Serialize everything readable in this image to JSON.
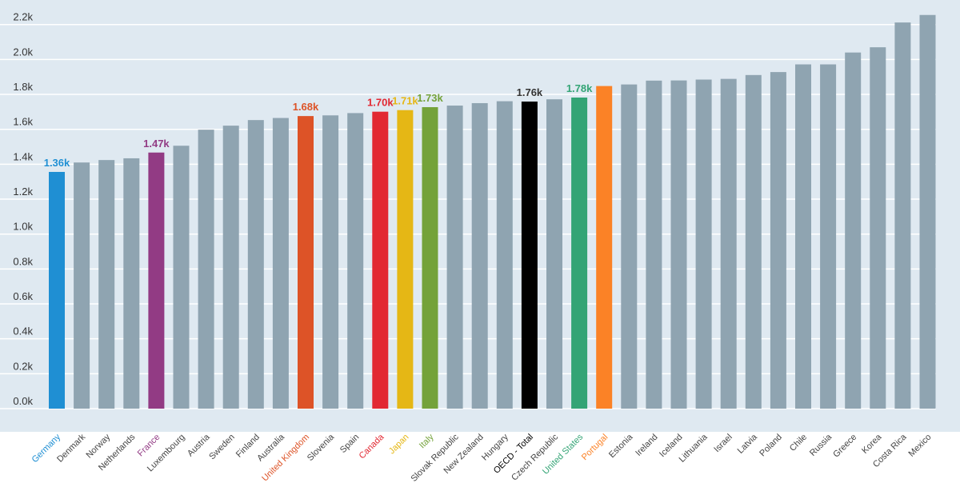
{
  "chart_data": {
    "type": "bar",
    "title": "",
    "xlabel": "",
    "ylabel": "",
    "ylim": [
      0,
      2260
    ],
    "grid": true,
    "yticks": [
      {
        "value": 0,
        "label": "0.0k"
      },
      {
        "value": 200,
        "label": "0.2k"
      },
      {
        "value": 400,
        "label": "0.4k"
      },
      {
        "value": 600,
        "label": "0.6k"
      },
      {
        "value": 800,
        "label": "0.8k"
      },
      {
        "value": 1000,
        "label": "1.0k"
      },
      {
        "value": 1200,
        "label": "1.2k"
      },
      {
        "value": 1400,
        "label": "1.4k"
      },
      {
        "value": 1600,
        "label": "1.6k"
      },
      {
        "value": 1800,
        "label": "1.8k"
      },
      {
        "value": 2000,
        "label": "2.0k"
      },
      {
        "value": 2200,
        "label": "2.2k"
      }
    ],
    "default_color": "#8fa4b1",
    "categories": [
      "Germany",
      "Denmark",
      "Norway",
      "Netherlands",
      "France",
      "Luxembourg",
      "Austria",
      "Sweden",
      "Finland",
      "Australia",
      "United Kingdom",
      "Slovenia",
      "Spain",
      "Canada",
      "Japan",
      "Italy",
      "Slovak Republic",
      "New Zealand",
      "Hungary",
      "OECD - Total",
      "Czech Republic",
      "United States",
      "Portugal",
      "Estonia",
      "Ireland",
      "Iceland",
      "Lithuania",
      "Israel",
      "Latvia",
      "Poland",
      "Chile",
      "Russia",
      "Greece",
      "Korea",
      "Costa Rica",
      "Mexico"
    ],
    "values": [
      1356,
      1410,
      1424,
      1434,
      1467,
      1506,
      1598,
      1621,
      1653,
      1665,
      1676,
      1680,
      1693,
      1701,
      1710,
      1727,
      1736,
      1750,
      1761,
      1759,
      1772,
      1782,
      1848,
      1857,
      1879,
      1880,
      1885,
      1889,
      1911,
      1928,
      1972,
      1972,
      2040,
      2070,
      2212,
      2255
    ],
    "highlights": [
      {
        "category": "Germany",
        "color": "#1f8fd3",
        "data_label": "1.36k"
      },
      {
        "category": "France",
        "color": "#923b84",
        "data_label": "1.47k"
      },
      {
        "category": "United Kingdom",
        "color": "#dd5327",
        "data_label": "1.68k"
      },
      {
        "category": "Canada",
        "color": "#e22832",
        "data_label": "1.70k"
      },
      {
        "category": "Japan",
        "color": "#e5b715",
        "data_label": "1.71k"
      },
      {
        "category": "Italy",
        "color": "#74a23a",
        "data_label": "1.73k"
      },
      {
        "category": "OECD - Total",
        "color": "#000000",
        "data_label": "1.76k"
      },
      {
        "category": "United States",
        "color": "#33a475",
        "data_label": "1.78k"
      },
      {
        "category": "Portugal",
        "color": "#fb8226",
        "data_label": ""
      }
    ]
  }
}
